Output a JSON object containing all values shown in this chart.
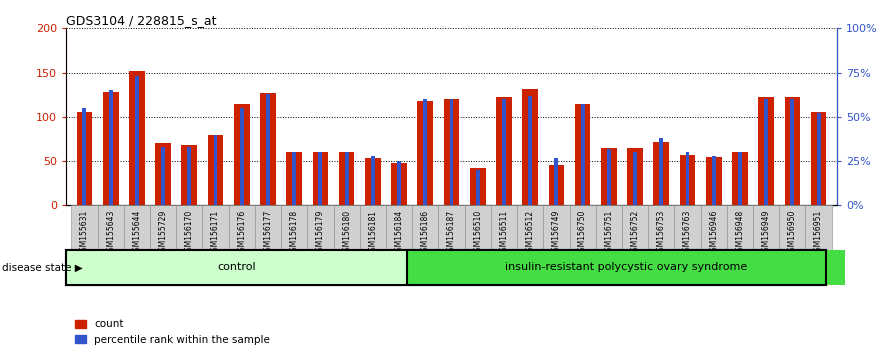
{
  "title": "GDS3104 / 228815_s_at",
  "samples": [
    "GSM155631",
    "GSM155643",
    "GSM155644",
    "GSM155729",
    "GSM156170",
    "GSM156171",
    "GSM156176",
    "GSM156177",
    "GSM156178",
    "GSM156179",
    "GSM156180",
    "GSM156181",
    "GSM156184",
    "GSM156186",
    "GSM156187",
    "GSM156510",
    "GSM156511",
    "GSM156512",
    "GSM156749",
    "GSM156750",
    "GSM156751",
    "GSM156752",
    "GSM156753",
    "GSM156763",
    "GSM156946",
    "GSM156948",
    "GSM156949",
    "GSM156950",
    "GSM156951"
  ],
  "count_values": [
    105,
    128,
    152,
    70,
    68,
    80,
    114,
    127,
    60,
    60,
    60,
    53,
    48,
    118,
    120,
    42,
    122,
    132,
    46,
    115,
    65,
    65,
    72,
    57,
    55,
    60,
    122,
    122,
    105
  ],
  "percentile_values": [
    55,
    65,
    73,
    33,
    33,
    40,
    55,
    63,
    30,
    30,
    30,
    28,
    25,
    60,
    60,
    20,
    60,
    62,
    27,
    57,
    32,
    30,
    38,
    30,
    28,
    30,
    60,
    60,
    52
  ],
  "control_count": 13,
  "disease_state_label": "disease state",
  "group1_label": "control",
  "group2_label": "insulin-resistant polycystic ovary syndrome",
  "bar_color_red": "#cc2200",
  "bar_color_blue": "#3355cc",
  "group1_bg": "#ccffcc",
  "group2_bg": "#44dd44",
  "tick_bg": "#d0d0d0",
  "ylim_left": [
    0,
    200
  ],
  "ylim_right": [
    0,
    100
  ],
  "yticks_left": [
    0,
    50,
    100,
    150,
    200
  ],
  "ytick_labels_left": [
    "0",
    "50",
    "100",
    "150",
    "200"
  ],
  "yticks_right": [
    0,
    25,
    50,
    75,
    100
  ],
  "ytick_labels_right": [
    "0%",
    "25%",
    "50%",
    "75%",
    "100%"
  ],
  "legend_count": "count",
  "legend_percentile": "percentile rank within the sample"
}
